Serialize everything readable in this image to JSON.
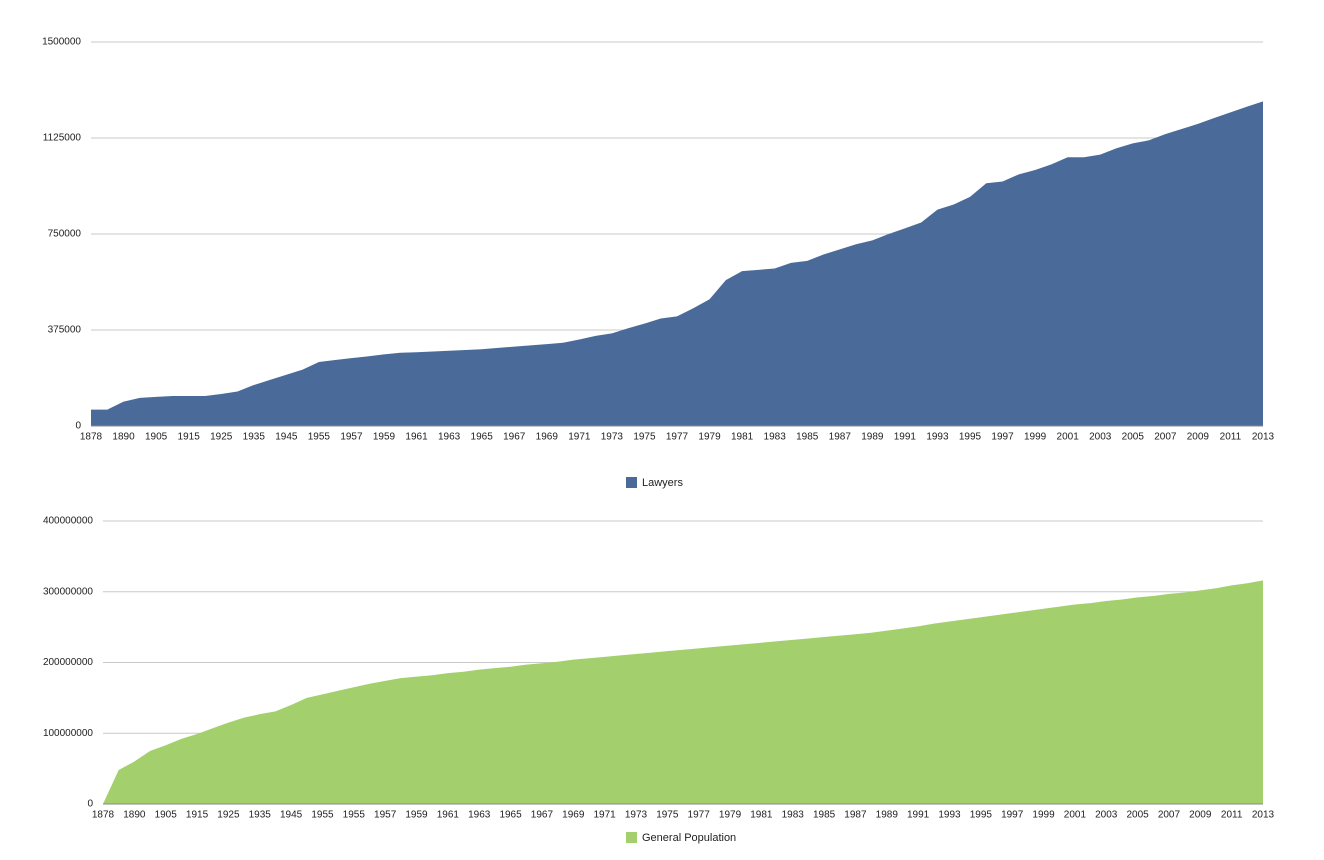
{
  "chart_data": [
    {
      "type": "area",
      "categories": [
        1878,
        null,
        1890,
        null,
        1905,
        null,
        1915,
        null,
        1925,
        null,
        1935,
        null,
        1945,
        null,
        1955,
        null,
        1957,
        null,
        1959,
        null,
        1961,
        null,
        1963,
        null,
        1965,
        null,
        1967,
        null,
        1969,
        null,
        1971,
        null,
        1973,
        null,
        1975,
        null,
        1977,
        null,
        1979,
        null,
        1981,
        null,
        1983,
        null,
        1985,
        null,
        1987,
        null,
        1989,
        null,
        1991,
        null,
        1993,
        null,
        1995,
        null,
        1997,
        null,
        1999,
        null,
        2001,
        null,
        2003,
        null,
        2005,
        null,
        2007,
        null,
        2009,
        null,
        2011,
        null,
        2013
      ],
      "series": [
        {
          "name": "Lawyers",
          "color": "#4a6b9a",
          "values": [
            64000,
            64000,
            95000,
            110000,
            114000,
            117000,
            117000,
            117000,
            125000,
            135000,
            160000,
            180000,
            200000,
            220000,
            250000,
            258000,
            265000,
            272000,
            280000,
            286000,
            288000,
            291000,
            294000,
            297000,
            300000,
            305000,
            310000,
            315000,
            320000,
            325000,
            338000,
            352000,
            362000,
            382000,
            400000,
            420000,
            428000,
            460000,
            495000,
            570000,
            605000,
            610000,
            615000,
            637000,
            645000,
            670000,
            690000,
            710000,
            725000,
            750000,
            772000,
            795000,
            845000,
            865000,
            895000,
            948000,
            955000,
            983000,
            1000000,
            1022000,
            1050000,
            1050000,
            1060000,
            1085000,
            1104000,
            1116000,
            1140000,
            1160000,
            1180000,
            1203000,
            1225000,
            1247000,
            1268000
          ]
        }
      ],
      "ylim": [
        0,
        1500000
      ],
      "yticks": [
        0,
        375000,
        750000,
        1125000,
        1500000
      ],
      "grid": true,
      "legend": "bottom"
    },
    {
      "type": "area",
      "categories": [
        1878,
        null,
        1890,
        null,
        1905,
        null,
        1915,
        null,
        1925,
        null,
        1935,
        null,
        1945,
        null,
        1955,
        null,
        1955,
        null,
        1957,
        null,
        1959,
        null,
        1961,
        null,
        1963,
        null,
        1965,
        null,
        1967,
        null,
        1969,
        null,
        1971,
        null,
        1973,
        null,
        1975,
        null,
        1977,
        null,
        1979,
        null,
        1981,
        null,
        1983,
        null,
        1985,
        null,
        1987,
        null,
        1989,
        null,
        1991,
        null,
        1993,
        null,
        1995,
        null,
        1997,
        null,
        1999,
        null,
        2001,
        null,
        2003,
        null,
        2005,
        null,
        2007,
        null,
        2009,
        null,
        2011,
        null,
        2013
      ],
      "series": [
        {
          "name": "General Population",
          "color": "#a3d06c",
          "values": [
            0,
            48000000,
            60000000,
            75000000,
            83000000,
            92000000,
            99000000,
            107000000,
            115000000,
            122000000,
            127000000,
            131000000,
            140000000,
            150000000,
            155000000,
            160000000,
            165000000,
            170000000,
            174000000,
            178000000,
            180000000,
            182000000,
            185000000,
            187000000,
            190000000,
            192000000,
            194000000,
            197000000,
            199000000,
            201000000,
            204000000,
            206000000,
            208000000,
            210000000,
            212000000,
            214000000,
            216000000,
            218000000,
            220000000,
            222000000,
            224000000,
            226000000,
            228000000,
            230000000,
            232000000,
            234000000,
            236000000,
            238000000,
            240000000,
            242000000,
            245000000,
            248000000,
            251000000,
            255000000,
            258000000,
            261000000,
            264000000,
            267000000,
            270000000,
            273000000,
            276000000,
            279000000,
            282000000,
            284000000,
            287000000,
            289000000,
            292000000,
            294000000,
            297000000,
            299000000,
            302000000,
            305000000,
            309000000,
            312000000,
            316000000
          ]
        }
      ],
      "ylim": [
        0,
        400000000
      ],
      "yticks": [
        0,
        100000000,
        200000000,
        300000000,
        400000000
      ],
      "grid": true,
      "legend": "bottom"
    }
  ]
}
